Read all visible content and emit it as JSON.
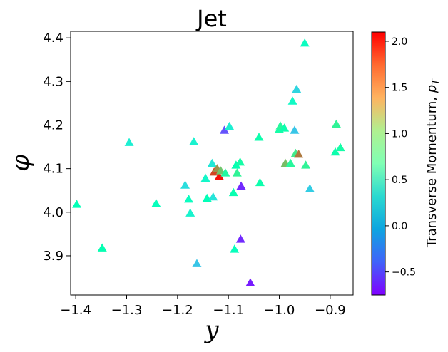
{
  "chart_data": {
    "type": "scatter",
    "title": "Jet",
    "xlabel": "y",
    "ylabel": "φ",
    "xlim": [
      -1.41,
      -0.855
    ],
    "ylim": [
      3.81,
      4.415
    ],
    "xticks": [
      -1.4,
      -1.3,
      -1.2,
      -1.1,
      -1.0,
      -0.9
    ],
    "xtick_labels": [
      "−1.4",
      "−1.3",
      "−1.2",
      "−1.1",
      "−1.0",
      "−0.9"
    ],
    "yticks": [
      3.9,
      4.0,
      4.1,
      4.2,
      4.3,
      4.4
    ],
    "ytick_labels": [
      "3.9",
      "4.0",
      "4.1",
      "4.2",
      "4.3",
      "4.4"
    ],
    "marker": "triangle-up",
    "grid": false,
    "colorbar": {
      "label_main": "Transverse Momentum, ",
      "label_symbol": "p",
      "label_sub": "T",
      "colormap": "rainbow",
      "range": [
        -0.75,
        2.1
      ],
      "ticks": [
        -0.5,
        0.0,
        0.5,
        1.0,
        1.5,
        2.0
      ],
      "tick_labels": [
        "−0.5",
        "0.0",
        "0.5",
        "1.0",
        "1.5",
        "2.0"
      ]
    },
    "points": [
      {
        "x": -1.398,
        "y": 4.018,
        "c": 0.65
      },
      {
        "x": -1.348,
        "y": 3.918,
        "c": 0.7
      },
      {
        "x": -1.295,
        "y": 4.16,
        "c": 0.35
      },
      {
        "x": -1.242,
        "y": 4.02,
        "c": 0.6
      },
      {
        "x": -1.185,
        "y": 4.062,
        "c": 0.2
      },
      {
        "x": -1.178,
        "y": 4.03,
        "c": 0.55
      },
      {
        "x": -1.175,
        "y": 3.998,
        "c": 0.4
      },
      {
        "x": -1.168,
        "y": 4.162,
        "c": 0.38
      },
      {
        "x": -1.162,
        "y": 3.882,
        "c": 0.05
      },
      {
        "x": -1.145,
        "y": 4.078,
        "c": 0.45
      },
      {
        "x": -1.142,
        "y": 4.032,
        "c": 0.65
      },
      {
        "x": -1.132,
        "y": 4.112,
        "c": 0.28
      },
      {
        "x": -1.13,
        "y": 4.035,
        "c": 0.25
      },
      {
        "x": -1.128,
        "y": 4.092,
        "c": 1.85
      },
      {
        "x": -1.122,
        "y": 4.1,
        "c": 1.55
      },
      {
        "x": -1.118,
        "y": 4.082,
        "c": 2.05
      },
      {
        "x": -1.115,
        "y": 4.095,
        "c": 1.3
      },
      {
        "x": -1.108,
        "y": 4.188,
        "c": -0.45
      },
      {
        "x": -1.106,
        "y": 4.09,
        "c": 0.85
      },
      {
        "x": -1.098,
        "y": 4.197,
        "c": 0.35
      },
      {
        "x": -1.09,
        "y": 4.045,
        "c": 0.72
      },
      {
        "x": -1.088,
        "y": 3.915,
        "c": 0.6
      },
      {
        "x": -1.085,
        "y": 4.108,
        "c": 0.7
      },
      {
        "x": -1.083,
        "y": 4.09,
        "c": 0.95
      },
      {
        "x": -1.077,
        "y": 4.115,
        "c": 0.8
      },
      {
        "x": -1.075,
        "y": 4.06,
        "c": -0.6
      },
      {
        "x": -1.076,
        "y": 3.938,
        "c": -0.6
      },
      {
        "x": -1.057,
        "y": 3.838,
        "c": -0.65
      },
      {
        "x": -1.04,
        "y": 4.172,
        "c": 0.75
      },
      {
        "x": -1.038,
        "y": 4.068,
        "c": 0.75
      },
      {
        "x": -1.0,
        "y": 4.19,
        "c": 0.8
      },
      {
        "x": -0.998,
        "y": 4.198,
        "c": 0.9
      },
      {
        "x": -0.99,
        "y": 4.193,
        "c": 0.75
      },
      {
        "x": -0.988,
        "y": 4.112,
        "c": 1.35
      },
      {
        "x": -0.978,
        "y": 4.112,
        "c": 0.9
      },
      {
        "x": -0.974,
        "y": 4.255,
        "c": 0.5
      },
      {
        "x": -0.97,
        "y": 4.188,
        "c": 0.05
      },
      {
        "x": -0.968,
        "y": 4.135,
        "c": 1.05
      },
      {
        "x": -0.966,
        "y": 4.282,
        "c": 0.15
      },
      {
        "x": -0.962,
        "y": 4.133,
        "c": 1.65
      },
      {
        "x": -0.95,
        "y": 4.388,
        "c": 0.55
      },
      {
        "x": -0.948,
        "y": 4.108,
        "c": 0.95
      },
      {
        "x": -0.94,
        "y": 4.054,
        "c": 0.1
      },
      {
        "x": -0.888,
        "y": 4.202,
        "c": 0.95
      },
      {
        "x": -0.89,
        "y": 4.138,
        "c": 0.75
      },
      {
        "x": -0.88,
        "y": 4.148,
        "c": 0.8
      }
    ]
  }
}
